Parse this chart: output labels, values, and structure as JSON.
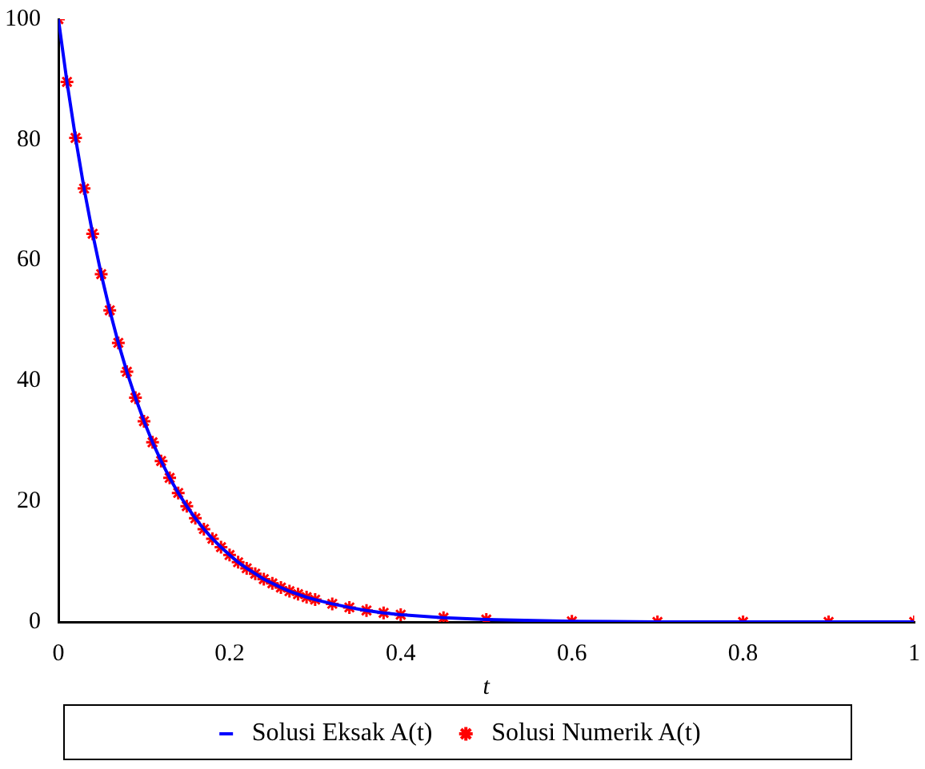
{
  "chart_data": {
    "type": "line",
    "xlabel": "t",
    "x": [
      0,
      0.01,
      0.02,
      0.03,
      0.04,
      0.05,
      0.06,
      0.07,
      0.08,
      0.09,
      0.1,
      0.11,
      0.12,
      0.13,
      0.14,
      0.15,
      0.16,
      0.17,
      0.18,
      0.19,
      0.2,
      0.21,
      0.22,
      0.23,
      0.24,
      0.25,
      0.26,
      0.27,
      0.28,
      0.29,
      0.3,
      0.32,
      0.34,
      0.36,
      0.38,
      0.4,
      0.45,
      0.5,
      0.6,
      0.7,
      0.8,
      0.9,
      1
    ],
    "series": [
      {
        "name": "Solusi Eksak A(t)",
        "color": "#0000ff",
        "marker": "none",
        "line_style": "solid",
        "values": [
          100,
          89.6,
          80.3,
          71.9,
          64.4,
          57.7,
          51.7,
          46.3,
          41.5,
          37.2,
          33.3,
          29.8,
          26.7,
          23.9,
          21.4,
          19.2,
          17.2,
          15.4,
          13.8,
          12.4,
          11.1,
          9.9,
          8.9,
          8,
          7.1,
          6.4,
          5.7,
          5.1,
          4.6,
          4.1,
          3.7,
          3,
          2.4,
          1.9,
          1.5,
          1.2,
          0.7,
          0.4,
          0.1,
          0,
          0,
          0,
          0
        ]
      },
      {
        "name": "Solusi Numerik A(t)",
        "type": "scatter",
        "color": "#ff0000",
        "marker": "cross",
        "values": [
          100,
          89.6,
          80.3,
          71.9,
          64.4,
          57.7,
          51.7,
          46.3,
          41.5,
          37.2,
          33.3,
          29.8,
          26.7,
          23.9,
          21.4,
          19.2,
          17.2,
          15.4,
          13.8,
          12.4,
          11.1,
          9.9,
          8.9,
          8,
          7.1,
          6.4,
          5.7,
          5.1,
          4.6,
          4.1,
          3.7,
          3,
          2.4,
          1.9,
          1.5,
          1.2,
          0.7,
          0.4,
          0.1,
          0,
          0,
          0,
          0
        ]
      }
    ],
    "xlim": [
      0,
      1
    ],
    "xticks": [
      0,
      0.2,
      0.4,
      0.6,
      0.8,
      1
    ],
    "ylim": [
      0,
      100
    ],
    "yticks": [
      0,
      20,
      40,
      60,
      80,
      100
    ],
    "grid": false,
    "legend": "bottom"
  }
}
